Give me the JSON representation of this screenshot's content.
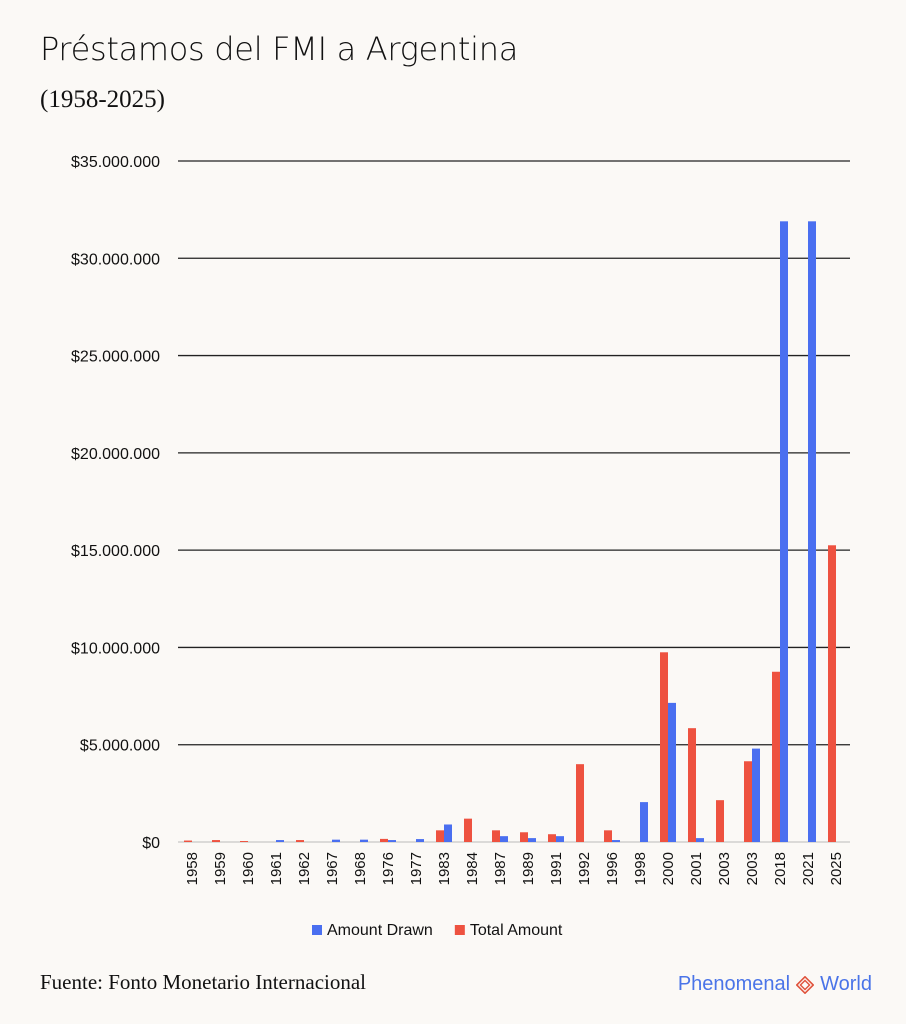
{
  "title": "Préstamos del FMI a Argentina",
  "subtitle": "(1958-2025)",
  "source": "Fuente: Fonto Monetario Internacional",
  "brand": {
    "left": "Phenomenal",
    "right": "World",
    "icon": "diamond-logo-icon"
  },
  "colors": {
    "drawn": "#4a6ff0",
    "total": "#ee5240",
    "brand": "#4a74e8"
  },
  "chart_data": {
    "type": "bar",
    "categories": [
      "1958",
      "1959",
      "1960",
      "1961",
      "1962",
      "1967",
      "1968",
      "1976",
      "1977",
      "1983",
      "1984",
      "1987",
      "1989",
      "1991",
      "1992",
      "1996",
      "1998",
      "2000",
      "2001",
      "2003",
      "2003",
      "2018",
      "2021",
      "2025"
    ],
    "series": [
      {
        "name": "Total Amount",
        "color": "#ee5240",
        "values": [
          75000,
          100000,
          50000,
          0,
          100000,
          0,
          0,
          160000,
          0,
          600000,
          1200000,
          600000,
          500000,
          400000,
          4000000,
          600000,
          0,
          9750000,
          5850000,
          2150000,
          4150000,
          8750000,
          0,
          15250000
        ]
      },
      {
        "name": "Amount Drawn",
        "color": "#4a6ff0",
        "values": [
          0,
          0,
          0,
          100000,
          0,
          120000,
          120000,
          100000,
          150000,
          900000,
          0,
          300000,
          200000,
          300000,
          0,
          100000,
          2050000,
          7150000,
          200000,
          0,
          4800000,
          31900000,
          31900000,
          0
        ]
      }
    ],
    "ylim": [
      0,
      35000000
    ],
    "yticks": [
      0,
      5000000,
      10000000,
      15000000,
      20000000,
      25000000,
      30000000,
      35000000
    ],
    "ytick_labels": [
      "$0",
      "$5.000.000",
      "$10.000.000",
      "$15.000.000",
      "$20.000.000",
      "$25.000.000",
      "$30.000.000",
      "$35.000.000"
    ],
    "legend": [
      "Amount Drawn",
      "Total Amount"
    ],
    "legend_position": "bottom",
    "grid": true
  }
}
